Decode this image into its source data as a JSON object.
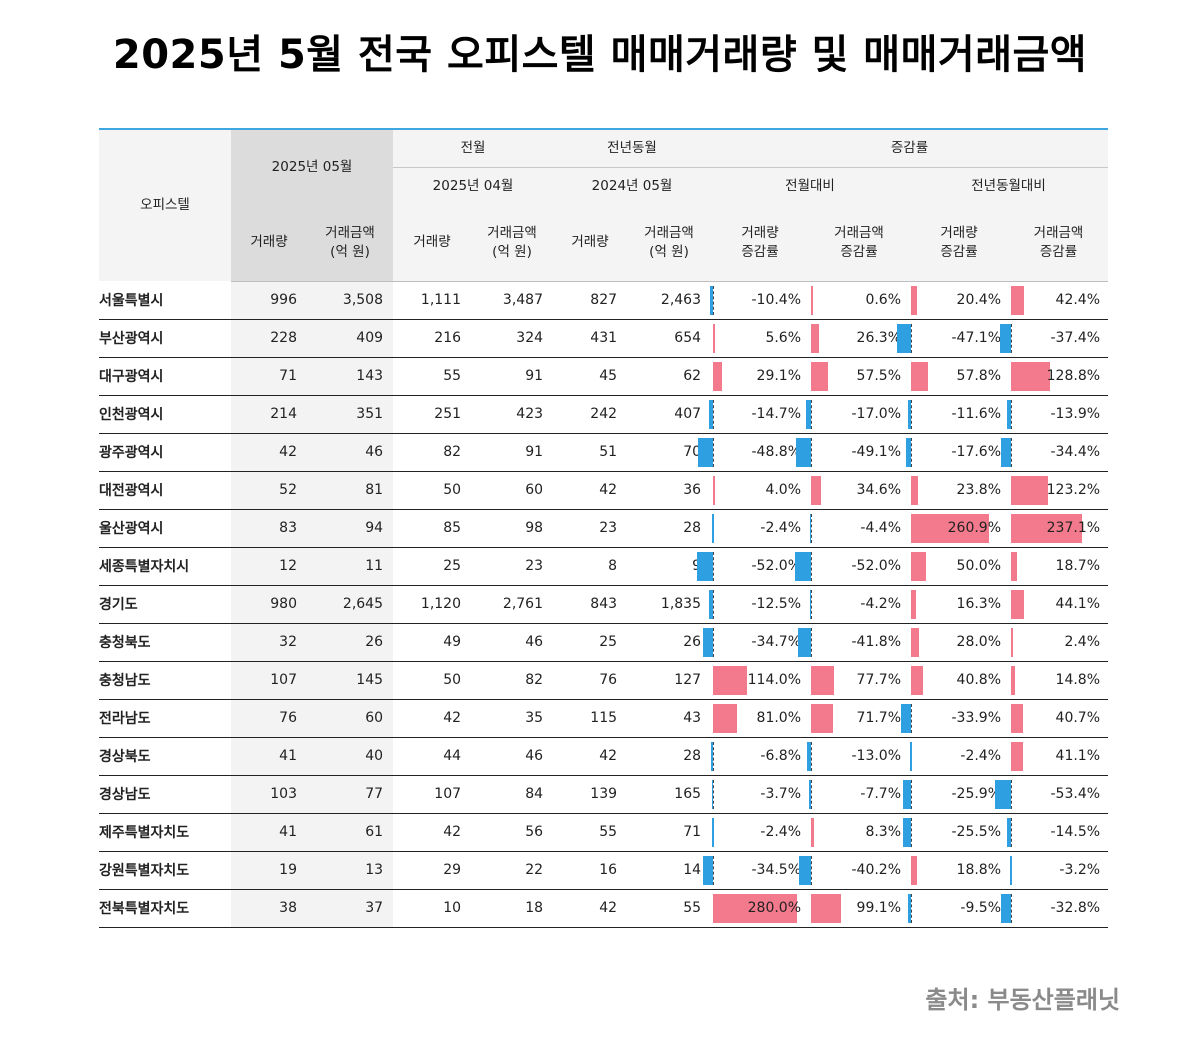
{
  "title": "2025년 5월 전국 오피스텔 매매거래량 및 매매거래금액",
  "source": "출처: 부동산플래닛",
  "header": {
    "region": "오피스텔",
    "current": "2025년 05월",
    "prev_month": "전월",
    "prev_year": "전년동월",
    "change": "증감률",
    "prev_month_date": "2025년 04월",
    "prev_year_date": "2024년 05월",
    "vs_prev_month": "전월대비",
    "vs_prev_year": "전년동월대비",
    "vol": "거래량",
    "amt_line1": "거래금액",
    "amt_line2": "(억 원)",
    "rate_line1_vol": "거래량",
    "rate_line1_amt": "거래금액",
    "rate_line2": "증감률"
  },
  "colors": {
    "positive": "#f37a8c",
    "negative": "#2e9fe0",
    "accent_line": "#3ea7e0"
  },
  "rows": [
    {
      "region": "서울특별시",
      "v": "996",
      "a": "3,508",
      "pv": "1,111",
      "pa": "3,487",
      "yv": "827",
      "ya": "2,463",
      "r1": -10.4,
      "r1t": "-10.4%",
      "r2": 0.6,
      "r2t": "0.6%",
      "r3": 20.4,
      "r3t": "20.4%",
      "r4": 42.4,
      "r4t": "42.4%"
    },
    {
      "region": "부산광역시",
      "v": "228",
      "a": "409",
      "pv": "216",
      "pa": "324",
      "yv": "431",
      "ya": "654",
      "r1": 5.6,
      "r1t": "5.6%",
      "r2": 26.3,
      "r2t": "26.3%",
      "r3": -47.1,
      "r3t": "-47.1%",
      "r4": -37.4,
      "r4t": "-37.4%"
    },
    {
      "region": "대구광역시",
      "v": "71",
      "a": "143",
      "pv": "55",
      "pa": "91",
      "yv": "45",
      "ya": "62",
      "r1": 29.1,
      "r1t": "29.1%",
      "r2": 57.5,
      "r2t": "57.5%",
      "r3": 57.8,
      "r3t": "57.8%",
      "r4": 128.8,
      "r4t": "128.8%"
    },
    {
      "region": "인천광역시",
      "v": "214",
      "a": "351",
      "pv": "251",
      "pa": "423",
      "yv": "242",
      "ya": "407",
      "r1": -14.7,
      "r1t": "-14.7%",
      "r2": -17.0,
      "r2t": "-17.0%",
      "r3": -11.6,
      "r3t": "-11.6%",
      "r4": -13.9,
      "r4t": "-13.9%"
    },
    {
      "region": "광주광역시",
      "v": "42",
      "a": "46",
      "pv": "82",
      "pa": "91",
      "yv": "51",
      "ya": "70",
      "r1": -48.8,
      "r1t": "-48.8%",
      "r2": -49.1,
      "r2t": "-49.1%",
      "r3": -17.6,
      "r3t": "-17.6%",
      "r4": -34.4,
      "r4t": "-34.4%"
    },
    {
      "region": "대전광역시",
      "v": "52",
      "a": "81",
      "pv": "50",
      "pa": "60",
      "yv": "42",
      "ya": "36",
      "r1": 4.0,
      "r1t": "4.0%",
      "r2": 34.6,
      "r2t": "34.6%",
      "r3": 23.8,
      "r3t": "23.8%",
      "r4": 123.2,
      "r4t": "123.2%"
    },
    {
      "region": "울산광역시",
      "v": "83",
      "a": "94",
      "pv": "85",
      "pa": "98",
      "yv": "23",
      "ya": "28",
      "r1": -2.4,
      "r1t": "-2.4%",
      "r2": -4.4,
      "r2t": "-4.4%",
      "r3": 260.9,
      "r3t": "260.9%",
      "r4": 237.1,
      "r4t": "237.1%"
    },
    {
      "region": "세종특별자치시",
      "v": "12",
      "a": "11",
      "pv": "25",
      "pa": "23",
      "yv": "8",
      "ya": "9",
      "r1": -52.0,
      "r1t": "-52.0%",
      "r2": -52.0,
      "r2t": "-52.0%",
      "r3": 50.0,
      "r3t": "50.0%",
      "r4": 18.7,
      "r4t": "18.7%"
    },
    {
      "region": "경기도",
      "v": "980",
      "a": "2,645",
      "pv": "1,120",
      "pa": "2,761",
      "yv": "843",
      "ya": "1,835",
      "r1": -12.5,
      "r1t": "-12.5%",
      "r2": -4.2,
      "r2t": "-4.2%",
      "r3": 16.3,
      "r3t": "16.3%",
      "r4": 44.1,
      "r4t": "44.1%"
    },
    {
      "region": "충청북도",
      "v": "32",
      "a": "26",
      "pv": "49",
      "pa": "46",
      "yv": "25",
      "ya": "26",
      "r1": -34.7,
      "r1t": "-34.7%",
      "r2": -41.8,
      "r2t": "-41.8%",
      "r3": 28.0,
      "r3t": "28.0%",
      "r4": 2.4,
      "r4t": "2.4%"
    },
    {
      "region": "충청남도",
      "v": "107",
      "a": "145",
      "pv": "50",
      "pa": "82",
      "yv": "76",
      "ya": "127",
      "r1": 114.0,
      "r1t": "114.0%",
      "r2": 77.7,
      "r2t": "77.7%",
      "r3": 40.8,
      "r3t": "40.8%",
      "r4": 14.8,
      "r4t": "14.8%"
    },
    {
      "region": "전라남도",
      "v": "76",
      "a": "60",
      "pv": "42",
      "pa": "35",
      "yv": "115",
      "ya": "43",
      "r1": 81.0,
      "r1t": "81.0%",
      "r2": 71.7,
      "r2t": "71.7%",
      "r3": -33.9,
      "r3t": "-33.9%",
      "r4": 40.7,
      "r4t": "40.7%"
    },
    {
      "region": "경상북도",
      "v": "41",
      "a": "40",
      "pv": "44",
      "pa": "46",
      "yv": "42",
      "ya": "28",
      "r1": -6.8,
      "r1t": "-6.8%",
      "r2": -13.0,
      "r2t": "-13.0%",
      "r3": -2.4,
      "r3t": "-2.4%",
      "r4": 41.1,
      "r4t": "41.1%"
    },
    {
      "region": "경상남도",
      "v": "103",
      "a": "77",
      "pv": "107",
      "pa": "84",
      "yv": "139",
      "ya": "165",
      "r1": -3.7,
      "r1t": "-3.7%",
      "r2": -7.7,
      "r2t": "-7.7%",
      "r3": -25.9,
      "r3t": "-25.9%",
      "r4": -53.4,
      "r4t": "-53.4%"
    },
    {
      "region": "제주특별자치도",
      "v": "41",
      "a": "61",
      "pv": "42",
      "pa": "56",
      "yv": "55",
      "ya": "71",
      "r1": -2.4,
      "r1t": "-2.4%",
      "r2": 8.3,
      "r2t": "8.3%",
      "r3": -25.5,
      "r3t": "-25.5%",
      "r4": -14.5,
      "r4t": "-14.5%"
    },
    {
      "region": "강원특별자치도",
      "v": "19",
      "a": "13",
      "pv": "29",
      "pa": "22",
      "yv": "16",
      "ya": "14",
      "r1": -34.5,
      "r1t": "-34.5%",
      "r2": -40.2,
      "r2t": "-40.2%",
      "r3": 18.8,
      "r3t": "18.8%",
      "r4": -3.2,
      "r4t": "-3.2%"
    },
    {
      "region": "전북특별자치도",
      "v": "38",
      "a": "37",
      "pv": "10",
      "pa": "18",
      "yv": "42",
      "ya": "55",
      "r1": 280.0,
      "r1t": "280.0%",
      "r2": 99.1,
      "r2t": "99.1%",
      "r3": -9.5,
      "r3t": "-9.5%",
      "r4": -32.8,
      "r4t": "-32.8%"
    }
  ]
}
